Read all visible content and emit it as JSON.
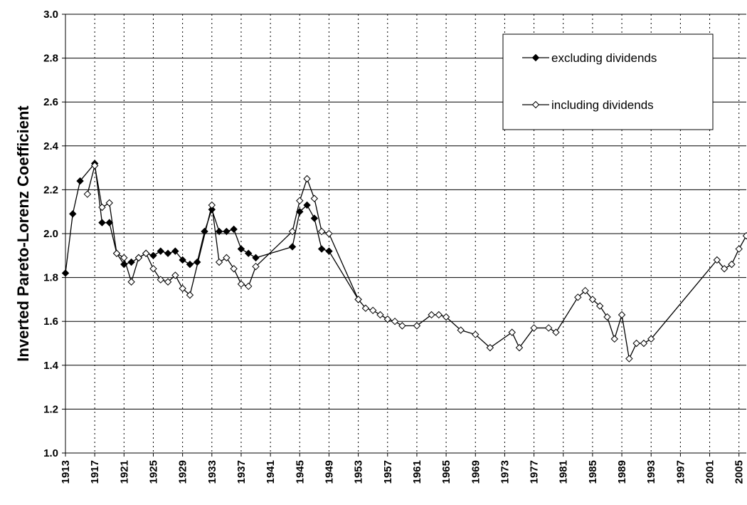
{
  "chart_data": {
    "type": "line",
    "y_label": "Inverted Pareto-Lorenz Coefficient",
    "xlim": [
      1913,
      2006
    ],
    "ylim": [
      1.0,
      3.0
    ],
    "xticks": [
      1913,
      1917,
      1921,
      1925,
      1929,
      1933,
      1937,
      1941,
      1945,
      1949,
      1953,
      1957,
      1961,
      1965,
      1969,
      1973,
      1977,
      1981,
      1985,
      1989,
      1993,
      1997,
      2001,
      2005
    ],
    "yticks": [
      {
        "value": 1.0,
        "label": "1.0"
      },
      1.2,
      1.4,
      1.6,
      1.8,
      {
        "value": 2.0,
        "label": "2.0"
      },
      2.2,
      2.4,
      2.6,
      2.8,
      {
        "value": 3.0,
        "label": "3.0"
      }
    ],
    "grid": true,
    "legend": "upper right",
    "series": [
      {
        "name": "excluding dividends",
        "color": "#000000",
        "marker": "filled-diamond",
        "x": [
          1913,
          1914,
          1915,
          1917,
          1918,
          1919,
          1920,
          1921,
          1922,
          1923,
          1924,
          1925,
          1926,
          1927,
          1928,
          1929,
          1930,
          1931,
          1932,
          1933,
          1934,
          1935,
          1936,
          1937,
          1938,
          1939,
          1944,
          1945,
          1946,
          1947,
          1948,
          1949,
          1953
        ],
        "values": [
          1.82,
          2.09,
          2.24,
          2.32,
          2.05,
          2.05,
          1.91,
          1.86,
          1.87,
          1.89,
          1.91,
          1.9,
          1.92,
          1.91,
          1.92,
          1.88,
          1.86,
          1.87,
          2.01,
          2.11,
          2.01,
          2.01,
          2.02,
          1.93,
          1.91,
          1.89,
          1.94,
          2.1,
          2.13,
          2.07,
          1.93,
          1.92,
          1.7
        ]
      },
      {
        "name": "including dividends",
        "color": "#000000",
        "marker": "open-diamond",
        "x": [
          1916,
          1917,
          1918,
          1919,
          1920,
          1921,
          1922,
          1923,
          1924,
          1925,
          1926,
          1927,
          1928,
          1929,
          1930,
          1933,
          1934,
          1935,
          1936,
          1937,
          1938,
          1939,
          1944,
          1945,
          1946,
          1947,
          1948,
          1949,
          1953,
          1954,
          1955,
          1956,
          1957,
          1958,
          1959,
          1961,
          1963,
          1964,
          1965,
          1967,
          1969,
          1971,
          1974,
          1975,
          1977,
          1979,
          1980,
          1983,
          1984,
          1985,
          1986,
          1987,
          1988,
          1989,
          1990,
          1991,
          1992,
          1993,
          2002,
          2003,
          2004,
          2005,
          2006
        ],
        "values": [
          2.18,
          2.31,
          2.12,
          2.14,
          1.91,
          1.89,
          1.78,
          1.89,
          1.91,
          1.84,
          1.79,
          1.78,
          1.81,
          1.75,
          1.72,
          2.13,
          1.87,
          1.89,
          1.84,
          1.77,
          1.76,
          1.85,
          2.01,
          2.15,
          2.25,
          2.16,
          2.01,
          2.0,
          1.7,
          1.66,
          1.65,
          1.63,
          1.61,
          1.6,
          1.58,
          1.58,
          1.63,
          1.63,
          1.62,
          1.56,
          1.54,
          1.48,
          1.55,
          1.48,
          1.57,
          1.57,
          1.55,
          1.71,
          1.74,
          1.7,
          1.67,
          1.62,
          1.52,
          1.63,
          1.43,
          1.5,
          1.5,
          1.52,
          1.88,
          1.84,
          1.86,
          1.93,
          1.99
        ]
      }
    ]
  }
}
